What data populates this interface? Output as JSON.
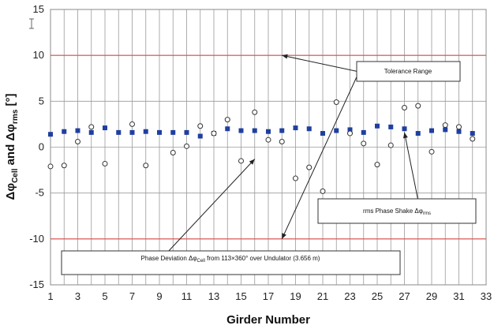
{
  "chart_data": {
    "type": "scatter",
    "xlabel": "Girder Number",
    "ylabel_parts": [
      "Δφ",
      "Cell",
      " and Δφ",
      "rms",
      " [°]"
    ],
    "xlim": [
      1,
      33
    ],
    "ylim": [
      -15,
      15
    ],
    "x_ticks": [
      1,
      3,
      5,
      7,
      9,
      11,
      13,
      15,
      17,
      19,
      21,
      23,
      25,
      27,
      29,
      31,
      33
    ],
    "y_ticks": [
      -15,
      -10,
      -5,
      0,
      5,
      10,
      15
    ],
    "grid": true,
    "tolerance_lines": [
      10,
      -10
    ],
    "series": [
      {
        "marker": "filled-square",
        "color": "#1f3fa0",
        "points": [
          [
            1,
            1.4
          ],
          [
            2,
            1.7
          ],
          [
            3,
            1.8
          ],
          [
            4,
            1.6
          ],
          [
            5,
            2.1
          ],
          [
            6,
            1.6
          ],
          [
            7,
            1.6
          ],
          [
            8,
            1.7
          ],
          [
            9,
            1.6
          ],
          [
            10,
            1.6
          ],
          [
            11,
            1.6
          ],
          [
            12,
            1.2
          ],
          [
            13,
            1.5
          ],
          [
            14,
            2.0
          ],
          [
            15,
            1.8
          ],
          [
            16,
            1.8
          ],
          [
            17,
            1.7
          ],
          [
            18,
            1.8
          ],
          [
            19,
            2.1
          ],
          [
            20,
            2.0
          ],
          [
            21,
            1.5
          ],
          [
            22,
            1.8
          ],
          [
            23,
            1.9
          ],
          [
            24,
            1.6
          ],
          [
            25,
            2.3
          ],
          [
            26,
            2.2
          ],
          [
            27,
            2.0
          ],
          [
            28,
            1.5
          ],
          [
            29,
            1.8
          ],
          [
            30,
            1.9
          ],
          [
            31,
            1.7
          ],
          [
            32,
            1.5
          ]
        ]
      },
      {
        "marker": "open-circle",
        "color": "#333333",
        "points": [
          [
            1,
            -2.1
          ],
          [
            2,
            -2.0
          ],
          [
            3,
            0.6
          ],
          [
            4,
            2.2
          ],
          [
            5,
            -1.8
          ],
          [
            7,
            2.5
          ],
          [
            8,
            -2.0
          ],
          [
            10,
            -0.6
          ],
          [
            11,
            0.1
          ],
          [
            12,
            2.3
          ],
          [
            13,
            1.5
          ],
          [
            14,
            3.0
          ],
          [
            15,
            -1.5
          ],
          [
            16,
            3.8
          ],
          [
            17,
            0.8
          ],
          [
            18,
            0.6
          ],
          [
            19,
            -3.4
          ],
          [
            20,
            -2.2
          ],
          [
            21,
            -4.8
          ],
          [
            22,
            4.9
          ],
          [
            23,
            1.5
          ],
          [
            24,
            0.4
          ],
          [
            25,
            -1.9
          ],
          [
            26,
            0.2
          ],
          [
            27,
            4.3
          ],
          [
            28,
            4.5
          ],
          [
            29,
            -0.5
          ],
          [
            30,
            2.4
          ],
          [
            31,
            2.2
          ],
          [
            32,
            0.9
          ]
        ]
      }
    ],
    "annotations": [
      {
        "id": "tolerance",
        "text": "Tolerance Range",
        "arrow_targets": [
          [
            18,
            10
          ],
          [
            18,
            -10
          ]
        ]
      },
      {
        "id": "rms",
        "text_parts": [
          "rms Phase Shake Δφ",
          "rms"
        ],
        "arrow_targets": [
          [
            27,
            1.6
          ]
        ]
      },
      {
        "id": "deviation",
        "text_parts": [
          "Phase Deviation Δφ",
          "Cell",
          " from 113×360° over Undulator (3.656 m)"
        ],
        "arrow_targets": [
          [
            16,
            -1.3
          ]
        ]
      }
    ]
  }
}
